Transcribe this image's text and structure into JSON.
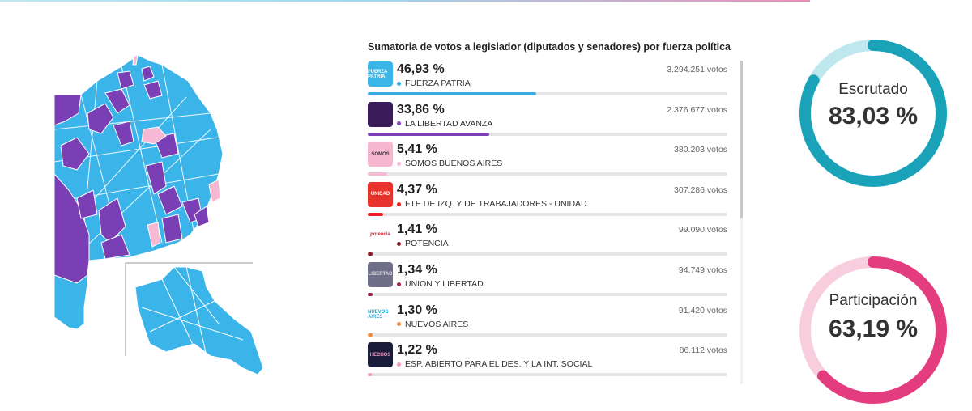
{
  "title": "Sumatoria de votos a legislador (diputados y senadores) por fuerza política",
  "parties": [
    {
      "pct": "46,93 %",
      "pct_value": 46.93,
      "name": "FUERZA PATRIA",
      "votes": "3.294.251 votos",
      "color": "#3aabe0",
      "logo": "FUERZA PATRIA",
      "logo_bg": "#3ab5e6",
      "logo_fg": "#fff"
    },
    {
      "pct": "33,86 %",
      "pct_value": 33.86,
      "name": "LA LIBERTAD AVANZA",
      "votes": "2.376.677 votos",
      "color": "#7b3fb5",
      "logo": "",
      "logo_bg": "#3b1c5a",
      "logo_fg": "#fff"
    },
    {
      "pct": "5,41 %",
      "pct_value": 5.41,
      "name": "SOMOS BUENOS AIRES",
      "votes": "380.203 votos",
      "color": "#f6bcd6",
      "logo": "SOMOS",
      "logo_bg": "#f7b6d0",
      "logo_fg": "#333"
    },
    {
      "pct": "4,37 %",
      "pct_value": 4.37,
      "name": "FTE DE IZQ. Y DE TRABAJADORES - UNIDAD",
      "votes": "307.286 votos",
      "color": "#e52521",
      "logo": "UNIDAD",
      "logo_bg": "#e8322c",
      "logo_fg": "#fff"
    },
    {
      "pct": "1,41 %",
      "pct_value": 1.41,
      "name": "POTENCIA",
      "votes": "99.090 votos",
      "color": "#8a1c2e",
      "logo": "potencia",
      "logo_bg": "#ffffff",
      "logo_fg": "#c8202e"
    },
    {
      "pct": "1,34 %",
      "pct_value": 1.34,
      "name": "UNION Y LIBERTAD",
      "votes": "94.749 votos",
      "color": "#9b2140",
      "logo": "LIBERTAD",
      "logo_bg": "#6f6f8a",
      "logo_fg": "#ddd"
    },
    {
      "pct": "1,30 %",
      "pct_value": 1.3,
      "name": "NUEVOS AIRES",
      "votes": "91.420 votos",
      "color": "#f08a3c",
      "logo": "NUEVOS AIRES",
      "logo_bg": "#ffffff",
      "logo_fg": "#1ba6e0"
    },
    {
      "pct": "1,22 %",
      "pct_value": 1.22,
      "name": "ESP. ABIERTO PARA EL DES. Y LA INT. SOCIAL",
      "votes": "86.112 votos",
      "color": "#f39ac0",
      "logo": "HECHOS",
      "logo_bg": "#1a1d3a",
      "logo_fg": "#f39ac0"
    }
  ],
  "stats": {
    "escrutado": {
      "label": "Escrutado",
      "value": "83,03 %",
      "fraction": 0.8303,
      "color": "#1aa3b8",
      "track": "#bfe7ee"
    },
    "participacion": {
      "label": "Participación",
      "value": "63,19 %",
      "fraction": 0.6319,
      "color": "#e33d7f",
      "track": "#f8cddd"
    }
  },
  "map_colors": {
    "blue": "#3bb4ea",
    "purple": "#7b3fb5",
    "pink": "#f6b8d3"
  }
}
